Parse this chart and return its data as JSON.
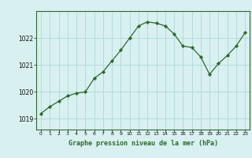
{
  "x": [
    0,
    1,
    2,
    3,
    4,
    5,
    6,
    7,
    8,
    9,
    10,
    11,
    12,
    13,
    14,
    15,
    16,
    17,
    18,
    19,
    20,
    21,
    22,
    23
  ],
  "y": [
    1019.2,
    1019.45,
    1019.65,
    1019.85,
    1019.95,
    1020.0,
    1020.5,
    1020.75,
    1021.15,
    1021.55,
    1022.0,
    1022.45,
    1022.6,
    1022.55,
    1022.45,
    1022.15,
    1021.7,
    1021.65,
    1021.3,
    1020.65,
    1021.05,
    1021.35,
    1021.7,
    1022.2
  ],
  "bg_color": "#d8f0f0",
  "line_color": "#2d6a2d",
  "marker_color": "#2d6a2d",
  "grid_color": "#b0d8d8",
  "xlabel": "Graphe pression niveau de la mer (hPa)",
  "xlabel_color": "#2d6a2d",
  "ylabel_ticks": [
    1019,
    1020,
    1021,
    1022
  ],
  "xtick_labels": [
    "0",
    "1",
    "2",
    "3",
    "4",
    "5",
    "6",
    "7",
    "8",
    "9",
    "10",
    "11",
    "12",
    "13",
    "14",
    "15",
    "16",
    "17",
    "18",
    "19",
    "20",
    "21",
    "22",
    "23"
  ],
  "ylim": [
    1018.6,
    1023.0
  ],
  "xlim": [
    -0.5,
    23.5
  ]
}
